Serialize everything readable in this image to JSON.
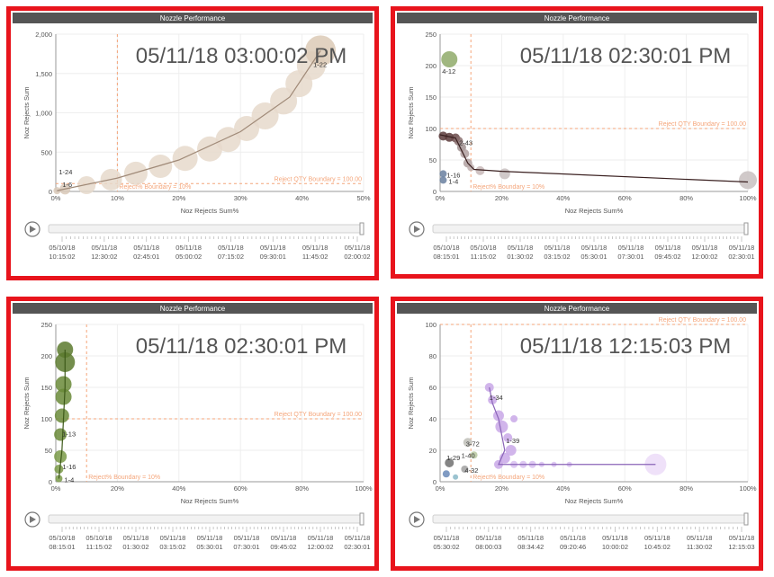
{
  "app": {
    "accent": "#e8141c",
    "title_bar_color": "#555555",
    "boundary_color": "#f4a57a"
  },
  "chart_data": [
    {
      "type": "scatter",
      "title": "Nozzle Performance",
      "timestamp": "05/11/18 03:00:02 PM",
      "xlabel": "Noz Rejects Sum%",
      "ylabel": "Noz Rejects Sum",
      "xlim": [
        0,
        50
      ],
      "ylim": [
        0,
        2000
      ],
      "x_ticks": [
        "0%",
        "10%",
        "20%",
        "30%",
        "40%",
        "50%"
      ],
      "y_ticks": [
        "0",
        "500",
        "1,000",
        "1,500",
        "2,000"
      ],
      "qty_boundary_label": "Reject QTY Boundary = 100.00",
      "pct_boundary_label": "Reject% Boundary = 10%",
      "qty_boundary": 100,
      "pct_boundary": 10,
      "trail_color": "#a08a78",
      "points": [
        {
          "x": 0.2,
          "y": 10,
          "s": 4,
          "c": "#d9c9b8"
        },
        {
          "x": 1.5,
          "y": 30,
          "s": 6,
          "c": "#d9c9b8"
        },
        {
          "x": 5,
          "y": 80,
          "s": 10,
          "c": "#e6d9cb"
        },
        {
          "x": 9,
          "y": 150,
          "s": 12,
          "c": "#e6d9cb"
        },
        {
          "x": 13,
          "y": 230,
          "s": 13,
          "c": "#e6d9cb"
        },
        {
          "x": 17,
          "y": 320,
          "s": 13,
          "c": "#e6d9cb"
        },
        {
          "x": 21,
          "y": 420,
          "s": 14,
          "c": "#e6d9cb"
        },
        {
          "x": 25,
          "y": 540,
          "s": 14,
          "c": "#e6d9cb"
        },
        {
          "x": 28,
          "y": 660,
          "s": 14,
          "c": "#e6d9cb"
        },
        {
          "x": 31,
          "y": 800,
          "s": 14,
          "c": "#e6d9cb"
        },
        {
          "x": 34,
          "y": 960,
          "s": 15,
          "c": "#e6d9cb"
        },
        {
          "x": 37,
          "y": 1150,
          "s": 15,
          "c": "#e6d9cb"
        },
        {
          "x": 39.5,
          "y": 1370,
          "s": 15,
          "c": "#e6d9cb"
        },
        {
          "x": 41.5,
          "y": 1600,
          "s": 16,
          "c": "#e6d9cb"
        },
        {
          "x": 43,
          "y": 1790,
          "s": 17,
          "c": "#dccab6"
        }
      ],
      "trail": [
        [
          0.2,
          10
        ],
        [
          10,
          170
        ],
        [
          20,
          400
        ],
        [
          30,
          760
        ],
        [
          38,
          1200
        ],
        [
          43,
          1790
        ]
      ],
      "labels": [
        {
          "text": "1-22",
          "x": 43,
          "y": 1790,
          "dx": -8,
          "dy": 18
        },
        {
          "text": "1-24",
          "x": 0.2,
          "y": 10,
          "dx": 2,
          "dy": -18
        },
        {
          "text": "1-6",
          "x": 0.2,
          "y": 10,
          "dx": 6,
          "dy": -4
        }
      ],
      "timeline": [
        "05/10/18\n10:15:02",
        "05/11/18\n12:30:02",
        "05/11/18\n02:45:01",
        "05/11/18\n05:00:02",
        "05/11/18\n07:15:02",
        "05/11/18\n09:30:01",
        "05/11/18\n11:45:02",
        "05/11/18\n02:00:02"
      ]
    },
    {
      "type": "scatter",
      "title": "Nozzle Performance",
      "timestamp": "05/11/18 02:30:01 PM",
      "xlabel": "Noz Rejects Sum%",
      "ylabel": "Noz Rejects Sum",
      "xlim": [
        0,
        100
      ],
      "ylim": [
        0,
        250
      ],
      "x_ticks": [
        "0%",
        "20%",
        "40%",
        "60%",
        "80%",
        "100%"
      ],
      "y_ticks": [
        "0",
        "50",
        "100",
        "150",
        "200",
        "250"
      ],
      "qty_boundary_label": "Reject QTY Boundary = 100.00",
      "pct_boundary_label": "Reject% Boundary = 10%",
      "qty_boundary": 100,
      "pct_boundary": 10,
      "trail_color": "#3a2020",
      "points": [
        {
          "x": 3,
          "y": 210,
          "s": 9,
          "c": "#8faa6a"
        },
        {
          "x": 1,
          "y": 88,
          "s": 5,
          "c": "#5a3a3a"
        },
        {
          "x": 3,
          "y": 86,
          "s": 5,
          "c": "#5a3a3a"
        },
        {
          "x": 5,
          "y": 85,
          "s": 5,
          "c": "#6a4a4a"
        },
        {
          "x": 6,
          "y": 80,
          "s": 5,
          "c": "#8a7070"
        },
        {
          "x": 7,
          "y": 70,
          "s": 5,
          "c": "#a09090"
        },
        {
          "x": 8,
          "y": 60,
          "s": 5,
          "c": "#b0a0a0"
        },
        {
          "x": 9,
          "y": 45,
          "s": 5,
          "c": "#b0a0a0"
        },
        {
          "x": 10,
          "y": 38,
          "s": 4,
          "c": "#c0b0b0"
        },
        {
          "x": 13,
          "y": 33,
          "s": 5,
          "c": "#c8b8b8"
        },
        {
          "x": 21,
          "y": 28,
          "s": 6,
          "c": "#c8c0c0"
        },
        {
          "x": 1,
          "y": 28,
          "s": 4,
          "c": "#6a80a0"
        },
        {
          "x": 1,
          "y": 18,
          "s": 4,
          "c": "#6a80a0"
        },
        {
          "x": 100,
          "y": 18,
          "s": 10,
          "c": "#c8c0c0"
        }
      ],
      "trail": [
        [
          0,
          90
        ],
        [
          5,
          85
        ],
        [
          9,
          45
        ],
        [
          11,
          35
        ],
        [
          20,
          32
        ],
        [
          100,
          15
        ]
      ],
      "labels": [
        {
          "text": "4-12",
          "x": 3,
          "y": 210,
          "dx": -8,
          "dy": 16
        },
        {
          "text": "1-16",
          "x": 1,
          "y": 28,
          "dx": 4,
          "dy": 4
        },
        {
          "text": "1-4",
          "x": 1,
          "y": 18,
          "dx": 6,
          "dy": 4
        },
        {
          "text": "2-43",
          "x": 5,
          "y": 85,
          "dx": 4,
          "dy": 8
        }
      ],
      "timeline": [
        "05/10/18\n08:15:01",
        "05/10/18\n11:15:02",
        "05/11/18\n01:30:02",
        "05/11/18\n03:15:02",
        "05/11/18\n05:30:01",
        "05/11/18\n07:30:01",
        "05/11/18\n09:45:02",
        "05/11/18\n12:00:02",
        "05/11/18\n02:30:01"
      ]
    },
    {
      "type": "scatter",
      "title": "Nozzle Performance",
      "timestamp": "05/11/18 02:30:01 PM",
      "xlabel": "Noz Rejects Sum%",
      "ylabel": "Noz Rejects Sum",
      "xlim": [
        0,
        100
      ],
      "ylim": [
        0,
        250
      ],
      "x_ticks": [
        "0%",
        "20%",
        "40%",
        "60%",
        "80%",
        "100%"
      ],
      "y_ticks": [
        "0",
        "50",
        "100",
        "150",
        "200",
        "250"
      ],
      "qty_boundary_label": "Reject QTY Boundary = 100.00",
      "pct_boundary_label": "Reject% Boundary = 10%",
      "qty_boundary": 100,
      "pct_boundary": 10,
      "trail_color": "#3e5a1a",
      "points": [
        {
          "x": 3,
          "y": 210,
          "s": 9,
          "c": "#5c7a2e"
        },
        {
          "x": 3,
          "y": 190,
          "s": 11,
          "c": "#5c7a2e"
        },
        {
          "x": 2.5,
          "y": 155,
          "s": 9,
          "c": "#6a8a38"
        },
        {
          "x": 2.5,
          "y": 135,
          "s": 9,
          "c": "#6a8a38"
        },
        {
          "x": 2,
          "y": 105,
          "s": 8,
          "c": "#6a8a38"
        },
        {
          "x": 1.5,
          "y": 75,
          "s": 7,
          "c": "#6a8a38"
        },
        {
          "x": 1.5,
          "y": 40,
          "s": 7,
          "c": "#7a9a48"
        },
        {
          "x": 1,
          "y": 20,
          "s": 5,
          "c": "#7a9a48"
        },
        {
          "x": 1,
          "y": 5,
          "s": 4,
          "c": "#7a9a48"
        }
      ],
      "trail": [
        [
          3,
          210
        ],
        [
          3,
          150
        ],
        [
          2.5,
          100
        ],
        [
          2,
          50
        ],
        [
          1,
          5
        ]
      ],
      "labels": [
        {
          "text": "1-16",
          "x": 1,
          "y": 20,
          "dx": 4,
          "dy": 0
        },
        {
          "text": "1-4",
          "x": 1,
          "y": 5,
          "dx": 6,
          "dy": 4
        },
        {
          "text": "1-13",
          "x": 1.5,
          "y": 75,
          "dx": 2,
          "dy": 2
        }
      ],
      "timeline": [
        "05/10/18\n08:15:01",
        "05/10/18\n11:15:02",
        "05/11/18\n01:30:02",
        "05/11/18\n03:15:02",
        "05/11/18\n05:30:01",
        "05/11/18\n07:30:01",
        "05/11/18\n09:45:02",
        "05/11/18\n12:00:02",
        "05/11/18\n02:30:01"
      ]
    },
    {
      "type": "scatter",
      "title": "Nozzle Performance",
      "timestamp": "05/11/18 12:15:03 PM",
      "xlabel": "Noz Rejects Sum%",
      "ylabel": "Noz Rejects Sum",
      "xlim": [
        0,
        100
      ],
      "ylim": [
        0,
        100
      ],
      "x_ticks": [
        "0%",
        "20%",
        "40%",
        "60%",
        "80%",
        "100%"
      ],
      "y_ticks": [
        "0",
        "20",
        "40",
        "60",
        "80",
        "100"
      ],
      "qty_boundary_label": "Reject QTY Boundary = 100.00",
      "pct_boundary_label": "Reject% Boundary = 10%",
      "qty_boundary": 100,
      "pct_boundary": 10,
      "trail_color": "#8a64b8",
      "points": [
        {
          "x": 16,
          "y": 60,
          "s": 5,
          "c": "#c9a8e8"
        },
        {
          "x": 17,
          "y": 52,
          "s": 5,
          "c": "#c9a8e8"
        },
        {
          "x": 19,
          "y": 42,
          "s": 6,
          "c": "#c9a8e8"
        },
        {
          "x": 20,
          "y": 35,
          "s": 7,
          "c": "#c9a8e8"
        },
        {
          "x": 22,
          "y": 28,
          "s": 5,
          "c": "#c9a8e8"
        },
        {
          "x": 23,
          "y": 20,
          "s": 6,
          "c": "#c9a8e8"
        },
        {
          "x": 21,
          "y": 15,
          "s": 6,
          "c": "#c9a8e8"
        },
        {
          "x": 19,
          "y": 11,
          "s": 5,
          "c": "#c9a8e8"
        },
        {
          "x": 24,
          "y": 11,
          "s": 4,
          "c": "#d8c0f0"
        },
        {
          "x": 27,
          "y": 11,
          "s": 4,
          "c": "#d8c0f0"
        },
        {
          "x": 30,
          "y": 11,
          "s": 4,
          "c": "#d8c0f0"
        },
        {
          "x": 33,
          "y": 11,
          "s": 3,
          "c": "#d8c0f0"
        },
        {
          "x": 37,
          "y": 11,
          "s": 3,
          "c": "#d8c0f0"
        },
        {
          "x": 42,
          "y": 11,
          "s": 3,
          "c": "#d8c0f0"
        },
        {
          "x": 70,
          "y": 11,
          "s": 12,
          "c": "#ecdcf8"
        },
        {
          "x": 24,
          "y": 40,
          "s": 4,
          "c": "#c9a8e8"
        },
        {
          "x": 9,
          "y": 25,
          "s": 5,
          "c": "#c0c0b8"
        },
        {
          "x": 11,
          "y": 17,
          "s": 4,
          "c": "#b8c8a0"
        },
        {
          "x": 3,
          "y": 12,
          "s": 5,
          "c": "#707070"
        },
        {
          "x": 2,
          "y": 5,
          "s": 4,
          "c": "#6a8ab8"
        },
        {
          "x": 5,
          "y": 3,
          "s": 3,
          "c": "#8ab8c8"
        },
        {
          "x": 8,
          "y": 8,
          "s": 4,
          "c": "#a0a0a0"
        }
      ],
      "trail": [
        [
          16,
          60
        ],
        [
          17,
          50
        ],
        [
          19,
          40
        ],
        [
          20,
          30
        ],
        [
          21,
          20
        ],
        [
          19,
          11
        ],
        [
          70,
          11
        ]
      ],
      "labels": [
        {
          "text": "1-34",
          "x": 16,
          "y": 60,
          "dx": 0,
          "dy": 14
        },
        {
          "text": "1-39",
          "x": 22,
          "y": 28,
          "dx": -2,
          "dy": 6
        },
        {
          "text": "3-72",
          "x": 9,
          "y": 25,
          "dx": -2,
          "dy": 4
        },
        {
          "text": "1-29",
          "x": 3,
          "y": 12,
          "dx": -3,
          "dy": -3
        },
        {
          "text": "1-40",
          "x": 11,
          "y": 17,
          "dx": -14,
          "dy": 3
        },
        {
          "text": "4-32",
          "x": 8,
          "y": 8,
          "dx": 0,
          "dy": 4
        }
      ],
      "timeline": [
        "05/11/18\n05:30:02",
        "05/11/18\n08:00:03",
        "05/11/18\n08:34:42",
        "05/11/18\n09:20:46",
        "05/11/18\n10:00:02",
        "05/11/18\n10:45:02",
        "05/11/18\n11:30:02",
        "05/11/18\n12:15:03"
      ]
    }
  ]
}
